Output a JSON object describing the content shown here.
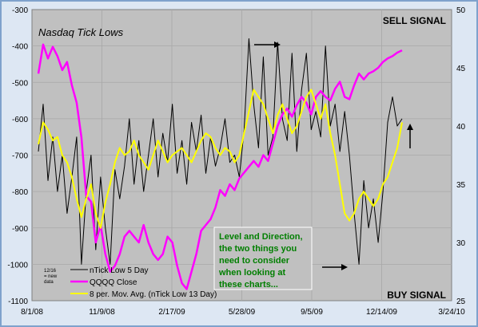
{
  "chart_data": {
    "type": "line",
    "title": "Nasdaq Tick Lows",
    "corner_labels": {
      "top_right": "SELL SIGNAL",
      "bottom_right": "BUY SIGNAL"
    },
    "x_ticks": [
      "8/1/08",
      "11/9/08",
      "2/17/09",
      "5/28/09",
      "9/5/09",
      "12/14/09",
      "3/24/10"
    ],
    "y_left": {
      "ticks": [
        "-300",
        "-400",
        "-500",
        "-600",
        "-700",
        "-800",
        "-900",
        "-1000",
        "-1100"
      ],
      "ylim": [
        -1100,
        -300
      ]
    },
    "y_right": {
      "ticks": [
        "50",
        "45",
        "40",
        "35",
        "30",
        "25"
      ],
      "ylim": [
        25,
        50
      ]
    },
    "annotation": {
      "lines": [
        "Level and Direction,",
        "the two things you",
        "need to consider",
        "when looking at",
        "these charts..."
      ],
      "color": "#007f00"
    },
    "note": {
      "lines": [
        "12/16",
        "= new",
        "data"
      ]
    },
    "legend": {
      "position": "bottom-left"
    },
    "series": [
      {
        "name": "nTick Low 5 Day",
        "axis": "left",
        "color": "#000000",
        "x": [
          "8/1/08",
          "8/8/08",
          "8/15/08",
          "8/22/08",
          "8/29/08",
          "9/5/08",
          "9/12/08",
          "9/19/08",
          "9/26/08",
          "10/3/08",
          "10/10/08",
          "10/17/08",
          "10/24/08",
          "10/31/08",
          "11/7/08",
          "11/14/08",
          "11/21/08",
          "11/28/08",
          "12/5/08",
          "12/12/08",
          "12/19/08",
          "12/26/08",
          "1/2/09",
          "1/9/09",
          "1/16/09",
          "1/23/09",
          "1/30/09",
          "2/6/09",
          "2/13/09",
          "2/20/09",
          "2/27/09",
          "3/6/09",
          "3/13/09",
          "3/20/09",
          "3/27/09",
          "4/3/09",
          "4/10/09",
          "4/17/09",
          "4/24/09",
          "5/1/09",
          "5/8/09",
          "5/15/09",
          "5/22/09",
          "5/29/09",
          "6/5/09",
          "6/12/09",
          "6/19/09",
          "6/26/09",
          "7/3/09",
          "7/10/09",
          "7/17/09",
          "7/24/09",
          "7/31/09",
          "8/7/09",
          "8/14/09",
          "8/21/09",
          "8/28/09",
          "9/4/09",
          "9/11/09",
          "9/18/09",
          "9/25/09",
          "10/2/09",
          "10/9/09",
          "10/16/09",
          "10/23/09",
          "10/30/09",
          "11/6/09",
          "11/13/09",
          "11/20/09",
          "11/27/09",
          "12/4/09",
          "12/11/09",
          "12/18/09",
          "12/25/09",
          "1/1/10",
          "1/8/10",
          "1/15/10"
        ],
        "values": [
          -690,
          -560,
          -770,
          -650,
          -800,
          -700,
          -860,
          -760,
          -650,
          -1000,
          -800,
          -700,
          -960,
          -760,
          -900,
          -1000,
          -740,
          -820,
          -730,
          -600,
          -780,
          -660,
          -800,
          -700,
          -600,
          -760,
          -640,
          -720,
          -560,
          -750,
          -660,
          -780,
          -610,
          -690,
          -590,
          -750,
          -650,
          -730,
          -680,
          -600,
          -720,
          -700,
          -760,
          -630,
          -380,
          -560,
          -680,
          -430,
          -700,
          -650,
          -390,
          -600,
          -660,
          -420,
          -690,
          -520,
          -420,
          -630,
          -580,
          -650,
          -400,
          -620,
          -560,
          -690,
          -580,
          -700,
          -860,
          -1000,
          -770,
          -900,
          -820,
          -940,
          -800,
          -610,
          -540,
          -620,
          -600
        ]
      },
      {
        "name": "QQQQ Close",
        "axis": "right",
        "color": "#ff00ff",
        "x": [
          "8/1/08",
          "8/8/08",
          "8/15/08",
          "8/22/08",
          "8/29/08",
          "9/5/08",
          "9/12/08",
          "9/19/08",
          "9/26/08",
          "10/3/08",
          "10/10/08",
          "10/17/08",
          "10/24/08",
          "10/31/08",
          "11/7/08",
          "11/14/08",
          "11/21/08",
          "11/28/08",
          "12/5/08",
          "12/12/08",
          "12/19/08",
          "12/26/08",
          "1/2/09",
          "1/9/09",
          "1/16/09",
          "1/23/09",
          "1/30/09",
          "2/6/09",
          "2/13/09",
          "2/20/09",
          "2/27/09",
          "3/6/09",
          "3/13/09",
          "3/20/09",
          "3/27/09",
          "4/3/09",
          "4/10/09",
          "4/17/09",
          "4/24/09",
          "5/1/09",
          "5/8/09",
          "5/15/09",
          "5/22/09",
          "5/29/09",
          "6/5/09",
          "6/12/09",
          "6/19/09",
          "6/26/09",
          "7/3/09",
          "7/10/09",
          "7/17/09",
          "7/24/09",
          "7/31/09",
          "8/7/09",
          "8/14/09",
          "8/21/09",
          "8/28/09",
          "9/4/09",
          "9/11/09",
          "9/18/09",
          "9/25/09",
          "10/2/09",
          "10/9/09",
          "10/16/09",
          "10/23/09",
          "10/30/09",
          "11/6/09",
          "11/13/09",
          "11/20/09",
          "11/27/09",
          "12/4/09",
          "12/11/09",
          "12/18/09",
          "12/25/09",
          "1/1/10",
          "1/8/10",
          "1/15/10"
        ],
        "values": [
          44.5,
          47,
          45.8,
          46.8,
          46,
          44.8,
          45.5,
          43.5,
          42,
          39,
          34,
          33.5,
          30,
          31.5,
          29,
          27.5,
          28,
          29,
          30.5,
          31,
          30.5,
          30,
          31.5,
          30,
          29,
          28.5,
          29,
          30.5,
          30,
          28,
          26.5,
          26,
          27.5,
          29,
          31,
          31.5,
          32,
          33,
          34.5,
          34,
          35,
          34.5,
          35.5,
          36,
          36.5,
          37,
          36.5,
          37.5,
          37,
          38.5,
          40,
          41,
          41.5,
          40.8,
          41.8,
          42.5,
          42,
          41,
          42.5,
          43,
          42.5,
          42.2,
          43.2,
          43.8,
          42.5,
          42.3,
          43.5,
          44.5,
          44,
          44.5,
          44.7,
          45,
          45.5,
          45.8,
          46,
          46.3,
          46.5
        ]
      },
      {
        "name": "8 per. Mov. Avg. (nTick Low 13 Day)",
        "axis": "left",
        "color": "#ffff00",
        "x": [
          "8/1/08",
          "8/8/08",
          "8/15/08",
          "8/22/08",
          "8/29/08",
          "9/5/08",
          "9/12/08",
          "9/19/08",
          "9/26/08",
          "10/3/08",
          "10/10/08",
          "10/17/08",
          "10/24/08",
          "10/31/08",
          "11/7/08",
          "11/14/08",
          "11/21/08",
          "11/28/08",
          "12/5/08",
          "12/12/08",
          "12/19/08",
          "12/26/08",
          "1/2/09",
          "1/9/09",
          "1/16/09",
          "1/23/09",
          "1/30/09",
          "2/6/09",
          "2/13/09",
          "2/20/09",
          "2/27/09",
          "3/6/09",
          "3/13/09",
          "3/20/09",
          "3/27/09",
          "4/3/09",
          "4/10/09",
          "4/17/09",
          "4/24/09",
          "5/1/09",
          "5/8/09",
          "5/15/09",
          "5/22/09",
          "5/29/09",
          "6/5/09",
          "6/12/09",
          "6/19/09",
          "6/26/09",
          "7/3/09",
          "7/10/09",
          "7/17/09",
          "7/24/09",
          "7/31/09",
          "8/7/09",
          "8/14/09",
          "8/21/09",
          "8/28/09",
          "9/4/09",
          "9/11/09",
          "9/18/09",
          "9/25/09",
          "10/2/09",
          "10/9/09",
          "10/16/09",
          "10/23/09",
          "10/30/09",
          "11/6/09",
          "11/13/09",
          "11/20/09",
          "11/27/09",
          "12/4/09",
          "12/11/09",
          "12/18/09",
          "12/25/09",
          "1/1/10",
          "1/8/10",
          "1/15/10"
        ],
        "values": [
          -670,
          -610,
          -630,
          -660,
          -650,
          -700,
          -720,
          -760,
          -820,
          -870,
          -820,
          -780,
          -860,
          -900,
          -830,
          -780,
          -720,
          -680,
          -700,
          -690,
          -660,
          -700,
          -720,
          -740,
          -700,
          -660,
          -690,
          -720,
          -700,
          -690,
          -680,
          -700,
          -720,
          -690,
          -660,
          -640,
          -650,
          -680,
          -700,
          -680,
          -690,
          -720,
          -700,
          -640,
          -580,
          -520,
          -540,
          -560,
          -600,
          -640,
          -590,
          -560,
          -600,
          -640,
          -620,
          -580,
          -540,
          -520,
          -560,
          -600,
          -560,
          -640,
          -700,
          -780,
          -860,
          -880,
          -860,
          -820,
          -800,
          -820,
          -840,
          -820,
          -780,
          -760,
          -720,
          -680,
          -610
        ]
      }
    ]
  }
}
